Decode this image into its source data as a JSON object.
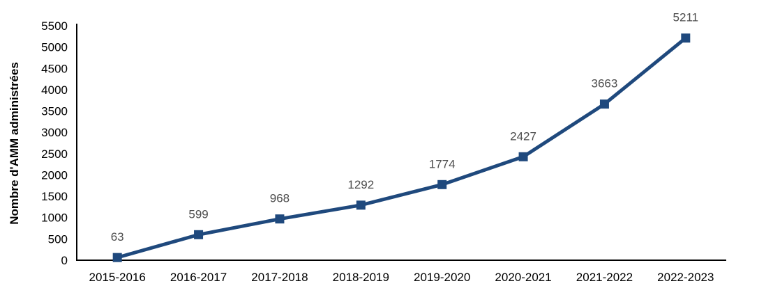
{
  "chart_data": {
    "type": "line",
    "title": "",
    "xlabel": "",
    "ylabel": "Nombre d'AMM administrées",
    "categories": [
      "2015-2016",
      "2016-2017",
      "2017-2018",
      "2018-2019",
      "2019-2020",
      "2020-2021",
      "2021-2022",
      "2022-2023"
    ],
    "values": [
      63,
      599,
      968,
      1292,
      1774,
      2427,
      3663,
      5211
    ],
    "ylim": [
      0,
      5500
    ],
    "ytick_step": 500,
    "y_ticks": [
      0,
      500,
      1000,
      1500,
      2000,
      2500,
      3000,
      3500,
      4000,
      4500,
      5000,
      5500
    ],
    "grid": false,
    "legend": "none",
    "marker": "square",
    "data_labels_visible": true,
    "colors": {
      "line": "#1F497D",
      "marker": "#1F497D",
      "data_label": "#4D4D4D",
      "tick_label": "#000000",
      "axis": "#000000",
      "background": "#FFFFFF"
    }
  }
}
